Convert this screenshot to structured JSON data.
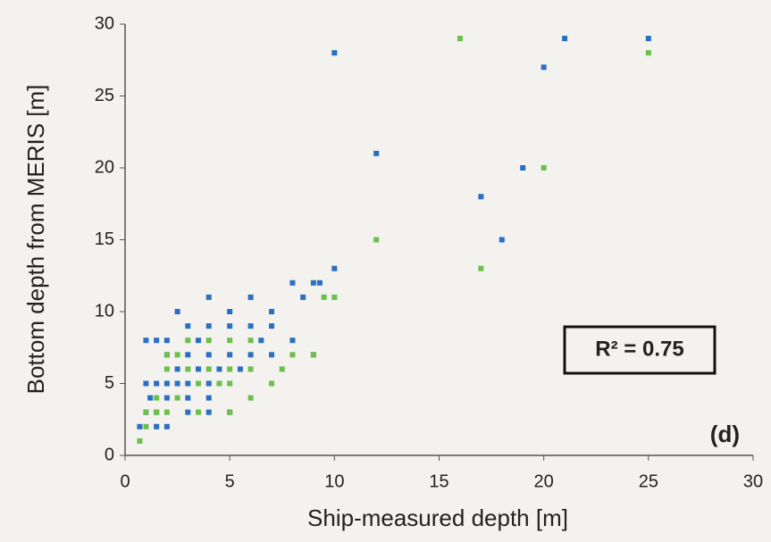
{
  "chart_data": {
    "type": "scatter",
    "xlabel": "Ship-measured depth  [m]",
    "ylabel": "Bottom depth from MERIS  [m]",
    "annotations": [
      "R² = 0.75",
      "(d)"
    ],
    "xlim": [
      0,
      30
    ],
    "xticks": [
      0,
      5,
      10,
      15,
      20,
      25,
      30
    ],
    "ylim": [
      0,
      30
    ],
    "yticks": [
      0,
      5,
      10,
      15,
      20,
      25,
      30
    ],
    "series": [
      {
        "color": "#2a6fc2",
        "x": [
          10,
          12,
          21,
          20,
          25,
          19,
          17,
          18,
          10,
          9,
          9.3,
          8,
          8.5,
          6,
          4,
          5,
          2.5,
          7,
          1,
          1.5,
          2,
          3,
          4,
          5,
          6,
          7,
          6.5,
          8,
          3.5,
          1,
          1.5,
          2,
          2.5,
          3,
          4,
          1.2,
          2,
          3,
          4,
          1,
          1.5,
          2,
          0.7,
          1.5,
          2,
          3,
          4,
          5,
          6,
          7,
          9,
          2.5,
          3.5,
          4.5,
          5.5,
          4,
          5,
          3
        ],
        "values": [
          28,
          21,
          29,
          27,
          29,
          20,
          18,
          15,
          13,
          12,
          12,
          12,
          11,
          11,
          11,
          10,
          10,
          10,
          8,
          8,
          8,
          9,
          9,
          9,
          9,
          9,
          8,
          8,
          8,
          5,
          5,
          5,
          5,
          5,
          5,
          4,
          4,
          4,
          4,
          3,
          3,
          2,
          2,
          2,
          7,
          7,
          7,
          7,
          7,
          7,
          7,
          6,
          6,
          6,
          6,
          3,
          3,
          3
        ]
      },
      {
        "color": "#6cbf4a",
        "x": [
          25,
          20,
          12,
          17,
          10,
          9.5,
          9,
          7.5,
          6,
          5,
          4,
          3,
          2,
          2.5,
          3,
          4,
          5,
          6,
          3.5,
          4.5,
          5,
          2,
          1,
          1.5,
          2,
          0.7,
          1,
          1.5,
          2.5,
          3.5,
          5,
          6,
          7,
          8,
          16
        ],
        "values": [
          28,
          20,
          15,
          13,
          11,
          11,
          7,
          6,
          8,
          8,
          8,
          8,
          7,
          7,
          6,
          6,
          6,
          6,
          5,
          5,
          5,
          6,
          3,
          3,
          3,
          1,
          2,
          4,
          4,
          3,
          3,
          4,
          5,
          7,
          29
        ]
      }
    ]
  }
}
